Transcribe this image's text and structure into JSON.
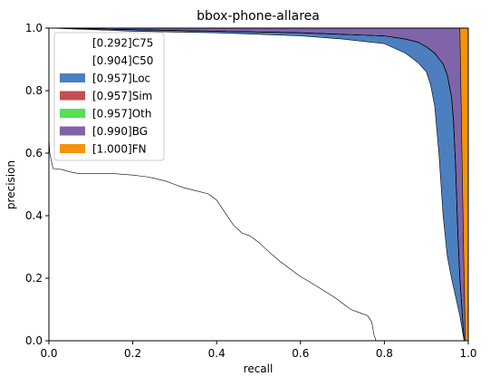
{
  "chart_data": {
    "type": "area",
    "title": "bbox-phone-allarea",
    "xlabel": "recall",
    "ylabel": "precision",
    "xlim": [
      0,
      1
    ],
    "ylim": [
      0,
      1
    ],
    "xticks": [
      0.0,
      0.2,
      0.4,
      0.6,
      0.8,
      1.0
    ],
    "yticks": [
      0.0,
      0.2,
      0.4,
      0.6,
      0.8,
      1.0
    ],
    "xtick_labels": [
      "0.0",
      "0.2",
      "0.4",
      "0.6",
      "0.8",
      "1.0"
    ],
    "ytick_labels": [
      "0.0",
      "0.2",
      "0.4",
      "0.6",
      "0.8",
      "1.0"
    ],
    "grid": false,
    "legend_position": "top-left",
    "series": [
      {
        "name": "[0.292]C75",
        "color": "#ffffff",
        "x": [
          0.0,
          0.002,
          0.01,
          0.03,
          0.05,
          0.07,
          0.1,
          0.15,
          0.2,
          0.23,
          0.25,
          0.28,
          0.3,
          0.32,
          0.35,
          0.38,
          0.4,
          0.42,
          0.44,
          0.46,
          0.48,
          0.5,
          0.52,
          0.55,
          0.58,
          0.6,
          0.62,
          0.65,
          0.68,
          0.7,
          0.72,
          0.74,
          0.76,
          0.77,
          0.775,
          0.78
        ],
        "y": [
          0.65,
          0.6,
          0.55,
          0.548,
          0.54,
          0.535,
          0.535,
          0.535,
          0.53,
          0.525,
          0.52,
          0.51,
          0.5,
          0.49,
          0.48,
          0.47,
          0.45,
          0.41,
          0.37,
          0.345,
          0.335,
          0.315,
          0.29,
          0.255,
          0.225,
          0.205,
          0.19,
          0.165,
          0.14,
          0.12,
          0.1,
          0.09,
          0.08,
          0.06,
          0.02,
          0.0
        ]
      },
      {
        "name": "[0.904]C50",
        "color": "#ffffff",
        "x": [
          0.0,
          0.2,
          0.4,
          0.6,
          0.7,
          0.8,
          0.85,
          0.88,
          0.9,
          0.91,
          0.92,
          0.93,
          0.94,
          0.95,
          0.96,
          0.97,
          0.98,
          0.985,
          0.99
        ],
        "y": [
          1.0,
          0.99,
          0.985,
          0.975,
          0.965,
          0.95,
          0.92,
          0.89,
          0.86,
          0.82,
          0.75,
          0.6,
          0.4,
          0.27,
          0.2,
          0.14,
          0.08,
          0.04,
          0.0
        ]
      },
      {
        "name": "[0.957]Loc",
        "color": "#4c7fbf",
        "x": [
          0.0,
          0.2,
          0.4,
          0.6,
          0.8,
          0.85,
          0.88,
          0.9,
          0.92,
          0.94,
          0.95,
          0.96,
          0.965,
          0.97,
          0.975,
          0.98,
          0.985,
          0.99
        ],
        "y": [
          1.0,
          0.995,
          0.99,
          0.985,
          0.975,
          0.965,
          0.955,
          0.94,
          0.92,
          0.885,
          0.85,
          0.78,
          0.7,
          0.55,
          0.35,
          0.2,
          0.1,
          0.0
        ]
      },
      {
        "name": "[0.957]Sim",
        "color": "#c44e52",
        "x": [
          0.0,
          0.2,
          0.4,
          0.6,
          0.8,
          0.85,
          0.88,
          0.9,
          0.92,
          0.94,
          0.95,
          0.96,
          0.965,
          0.97,
          0.975,
          0.98,
          0.985,
          0.99
        ],
        "y": [
          1.0,
          0.995,
          0.99,
          0.985,
          0.975,
          0.965,
          0.955,
          0.94,
          0.92,
          0.885,
          0.85,
          0.78,
          0.7,
          0.55,
          0.35,
          0.2,
          0.1,
          0.0
        ]
      },
      {
        "name": "[0.957]Oth",
        "color": "#55e055",
        "x": [
          0.0,
          0.2,
          0.4,
          0.6,
          0.8,
          0.85,
          0.88,
          0.9,
          0.92,
          0.94,
          0.95,
          0.96,
          0.965,
          0.97,
          0.975,
          0.98,
          0.985,
          0.99
        ],
        "y": [
          1.0,
          0.995,
          0.99,
          0.985,
          0.975,
          0.965,
          0.955,
          0.94,
          0.92,
          0.885,
          0.85,
          0.78,
          0.7,
          0.55,
          0.35,
          0.2,
          0.1,
          0.0
        ]
      },
      {
        "name": "[0.990]BG",
        "color": "#8064a8",
        "x": [
          0.0,
          0.9,
          0.95,
          0.97,
          0.98,
          0.985,
          0.99,
          0.993
        ],
        "y": [
          1.0,
          1.0,
          1.0,
          1.0,
          1.0,
          0.6,
          0.2,
          0.0
        ]
      },
      {
        "name": "[1.000]FN",
        "color": "#f5930a",
        "x": [
          0.0,
          0.993,
          1.0
        ],
        "y": [
          1.0,
          1.0,
          1.0
        ]
      }
    ]
  }
}
